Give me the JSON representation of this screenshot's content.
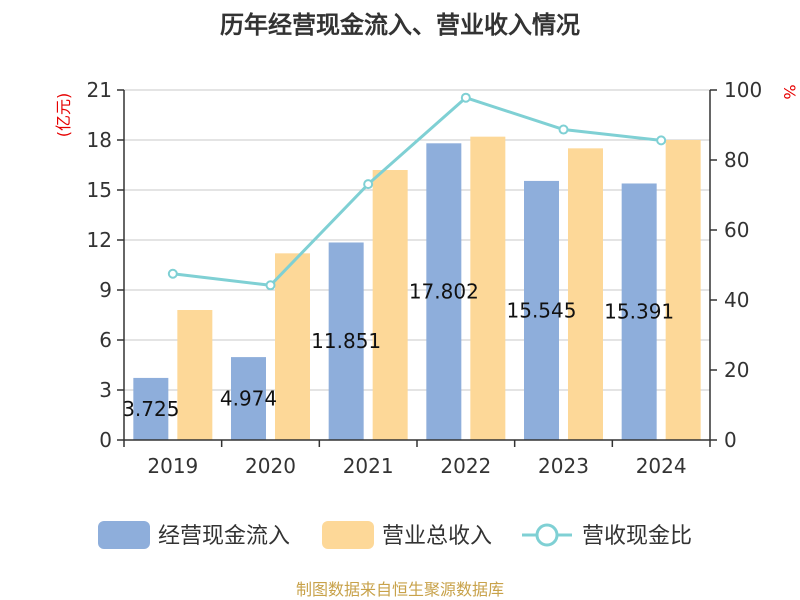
{
  "chart_data": {
    "type": "bar",
    "title": "历年经营现金流入、营业收入情况",
    "categories": [
      "2019",
      "2020",
      "2021",
      "2022",
      "2023",
      "2024"
    ],
    "series": [
      {
        "name": "经营现金流入",
        "type": "bar",
        "axis": "left",
        "color": "#8eaedb",
        "values": [
          3.725,
          4.974,
          11.851,
          17.802,
          15.545,
          15.391
        ],
        "labels": [
          "3.725",
          "4.974",
          "11.851",
          "17.802",
          "15.545",
          "15.391"
        ]
      },
      {
        "name": "营业总收入",
        "type": "bar",
        "axis": "left",
        "color": "#fdd898",
        "values": [
          7.8,
          11.2,
          16.2,
          18.2,
          17.5,
          18.0
        ]
      },
      {
        "name": "营收现金比",
        "type": "line",
        "axis": "right",
        "color": "#7fd0d4",
        "values": [
          47.5,
          44.2,
          73.1,
          97.8,
          88.7,
          85.6
        ]
      }
    ],
    "yleft": {
      "label": "(亿元)",
      "ylim": [
        0,
        21
      ],
      "ticks": [
        "0",
        "3",
        "6",
        "9",
        "12",
        "15",
        "18",
        "21"
      ]
    },
    "yright": {
      "label": "%",
      "ylim": [
        0,
        100
      ],
      "ticks": [
        "0",
        "20",
        "40",
        "60",
        "80",
        "100"
      ]
    },
    "grid": true,
    "legend": "bottom"
  },
  "footer": "制图数据来自恒生聚源数据库"
}
